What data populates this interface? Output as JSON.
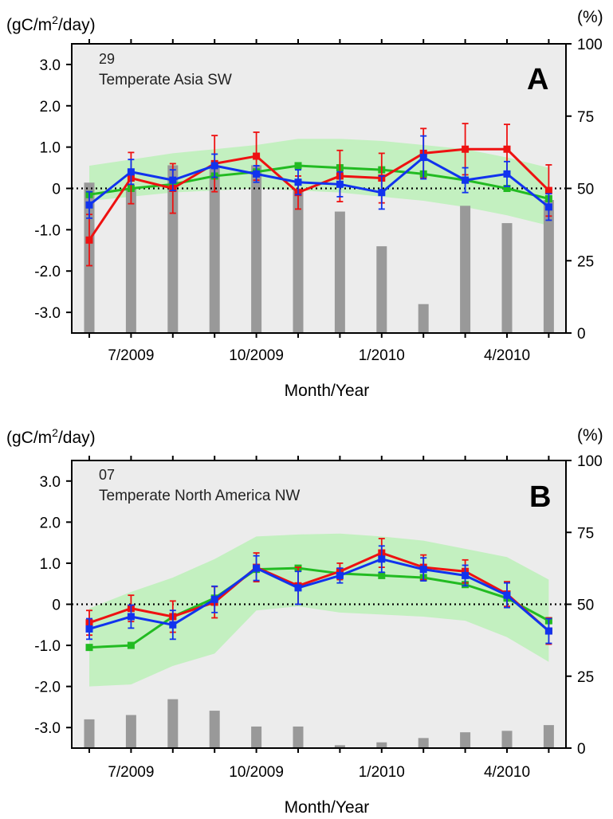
{
  "chart_data": [
    {
      "type": "line",
      "panel_label": "A",
      "region_code": "29",
      "region_name": "Temperate Asia SW",
      "y_unit_label": "(gC/m²/day)",
      "y2_unit_label": "(%)",
      "xlabel": "Month/Year",
      "ylim": [
        -3.5,
        3.5
      ],
      "y2lim": [
        0,
        100
      ],
      "yticks": [
        "3.0",
        "2.0",
        "1.0",
        "0",
        "-1.0",
        "-2.0",
        "-3.0"
      ],
      "y2ticks": [
        "100",
        "75",
        "50",
        "25",
        "0"
      ],
      "x_tick_labels": [
        "7/2009",
        "10/2009",
        "1/2010",
        "4/2010"
      ],
      "x_tick_index": [
        1,
        4,
        7,
        10
      ],
      "n_months": 12,
      "band": {
        "color": "#c3f0c0",
        "lower": [
          -0.3,
          -0.2,
          -0.1,
          -0.05,
          0.0,
          -0.05,
          -0.1,
          -0.2,
          -0.3,
          -0.45,
          -0.65,
          -0.9
        ],
        "upper": [
          0.55,
          0.7,
          0.85,
          0.95,
          1.05,
          1.2,
          1.2,
          1.15,
          1.05,
          0.95,
          0.75,
          0.5
        ]
      },
      "bars": {
        "color": "#999999",
        "values": [
          52,
          50,
          58,
          58,
          58,
          50,
          42,
          30,
          10,
          44,
          38,
          46
        ]
      },
      "series": [
        {
          "color": "#22bb22",
          "values": [
            -0.15,
            0.0,
            0.1,
            0.3,
            0.4,
            0.55,
            0.5,
            0.45,
            0.35,
            0.2,
            0.0,
            -0.25
          ],
          "err": null
        },
        {
          "color": "#ee1111",
          "values": [
            -1.25,
            0.25,
            0.0,
            0.6,
            0.78,
            -0.1,
            0.3,
            0.25,
            0.85,
            0.95,
            0.95,
            -0.05
          ],
          "err": [
            0.62,
            0.62,
            0.6,
            0.68,
            0.58,
            0.4,
            0.62,
            0.6,
            0.6,
            0.62,
            0.6,
            0.62
          ]
        },
        {
          "color": "#1133ee",
          "values": [
            -0.4,
            0.4,
            0.2,
            0.55,
            0.35,
            0.15,
            0.1,
            -0.1,
            0.75,
            0.2,
            0.35,
            -0.45
          ],
          "err": [
            0.32,
            0.3,
            0.25,
            0.28,
            0.2,
            0.3,
            0.3,
            0.4,
            0.52,
            0.3,
            0.3,
            0.32
          ]
        }
      ]
    },
    {
      "type": "line",
      "panel_label": "B",
      "region_code": "07",
      "region_name": "Temperate North America NW",
      "y_unit_label": "(gC/m²/day)",
      "y2_unit_label": "(%)",
      "xlabel": "Month/Year",
      "ylim": [
        -3.5,
        3.5
      ],
      "y2lim": [
        0,
        100
      ],
      "yticks": [
        "3.0",
        "2.0",
        "1.0",
        "0",
        "-1.0",
        "-2.0",
        "-3.0"
      ],
      "y2ticks": [
        "100",
        "75",
        "50",
        "25",
        "0"
      ],
      "x_tick_labels": [
        "7/2009",
        "10/2009",
        "1/2010",
        "4/2010"
      ],
      "x_tick_index": [
        1,
        4,
        7,
        10
      ],
      "n_months": 12,
      "band": {
        "color": "#c3f0c0",
        "lower": [
          -2.0,
          -1.95,
          -1.5,
          -1.2,
          -0.15,
          -0.05,
          -0.2,
          -0.25,
          -0.3,
          -0.4,
          -0.8,
          -1.4
        ],
        "upper": [
          -0.1,
          0.3,
          0.65,
          1.1,
          1.65,
          1.7,
          1.72,
          1.65,
          1.55,
          1.35,
          1.15,
          0.6
        ]
      },
      "bars": {
        "color": "#999999",
        "values": [
          10,
          11.5,
          17,
          13,
          7.5,
          7.5,
          1,
          2,
          3.5,
          5.5,
          6,
          8
        ]
      },
      "series": [
        {
          "color": "#22bb22",
          "values": [
            -1.05,
            -1.0,
            -0.3,
            0.15,
            0.85,
            0.88,
            0.75,
            0.7,
            0.65,
            0.48,
            0.15,
            -0.4
          ],
          "err": null
        },
        {
          "color": "#ee1111",
          "values": [
            -0.45,
            -0.1,
            -0.3,
            0.05,
            0.9,
            0.45,
            0.8,
            1.25,
            0.9,
            0.8,
            0.25,
            -0.65
          ],
          "err": [
            0.3,
            0.32,
            0.38,
            0.38,
            0.35,
            0.45,
            0.2,
            0.35,
            0.3,
            0.28,
            0.3,
            0.32
          ]
        },
        {
          "color": "#1133ee",
          "values": [
            -0.6,
            -0.3,
            -0.5,
            0.12,
            0.88,
            0.4,
            0.7,
            1.1,
            0.85,
            0.7,
            0.22,
            -0.65
          ],
          "err": [
            0.25,
            0.28,
            0.35,
            0.32,
            0.3,
            0.4,
            0.18,
            0.32,
            0.28,
            0.25,
            0.3,
            0.3
          ]
        }
      ]
    }
  ]
}
